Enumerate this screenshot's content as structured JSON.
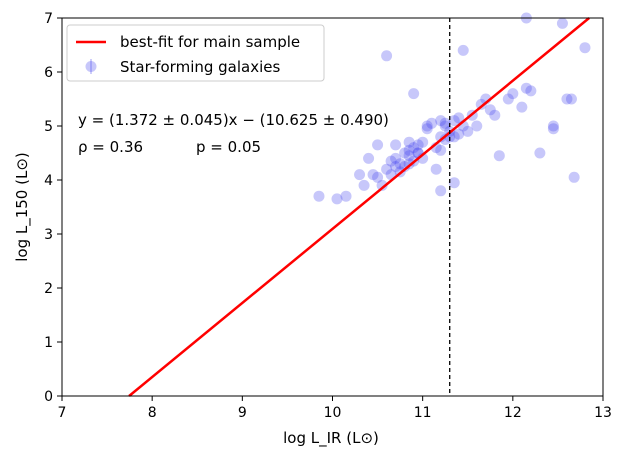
{
  "chart_data": {
    "type": "scatter",
    "title": "",
    "xlabel": "log L_IR (L⊙)",
    "ylabel": "log L_150 (L⊙)",
    "xlim": [
      7,
      13
    ],
    "ylim": [
      0,
      7
    ],
    "x_ticks": [
      "7",
      "8",
      "9",
      "10",
      "11",
      "12",
      "13"
    ],
    "y_ticks": [
      "0",
      "1",
      "2",
      "3",
      "4",
      "5",
      "6",
      "7"
    ],
    "grid": false,
    "legend": {
      "placement": "top-left",
      "entries": [
        "best-fit for main sample",
        "Star-forming galaxies"
      ]
    },
    "colors": {
      "fit_line": "#ff0000",
      "points": "#4444ee"
    },
    "fit": {
      "slope": 1.372,
      "intercept": -10.625
    },
    "vline_x": 11.3,
    "annotations": {
      "equation": "y = (1.372 ± 0.045)x − (10.625 ± 0.490)",
      "rho": "ρ = 0.36",
      "p": "p = 0.05"
    },
    "series": [
      {
        "name": "Star-forming galaxies",
        "x": [
          10.6,
          11.45,
          10.9,
          9.85,
          10.05,
          10.15,
          10.3,
          10.35,
          10.45,
          10.5,
          10.55,
          10.6,
          10.65,
          10.65,
          10.7,
          10.7,
          10.75,
          10.75,
          10.8,
          10.8,
          10.85,
          10.85,
          10.85,
          10.9,
          10.9,
          10.95,
          10.95,
          11.0,
          11.0,
          11.05,
          11.1,
          11.15,
          11.2,
          11.2,
          11.2,
          11.25,
          11.25,
          11.3,
          11.3,
          11.35,
          11.35,
          11.4,
          11.4,
          11.45,
          11.5,
          11.55,
          11.6,
          11.65,
          11.7,
          11.8,
          11.95,
          12.0,
          12.1,
          12.15,
          12.2,
          12.3,
          12.45,
          12.45,
          12.55,
          12.6,
          12.65,
          12.8,
          12.68,
          10.4,
          10.5,
          11.75,
          11.85,
          11.2,
          11.35,
          12.15,
          11.15,
          10.95,
          11.05,
          11.25,
          10.7,
          10.85
        ],
        "y": [
          6.3,
          6.4,
          5.6,
          3.7,
          3.65,
          3.7,
          4.1,
          3.9,
          4.1,
          4.05,
          3.9,
          4.2,
          4.1,
          4.35,
          4.4,
          4.25,
          4.3,
          4.15,
          4.5,
          4.25,
          4.55,
          4.3,
          4.7,
          4.6,
          4.35,
          4.65,
          4.5,
          4.4,
          4.7,
          5.0,
          5.05,
          4.2,
          5.1,
          4.8,
          4.55,
          4.75,
          5.0,
          4.8,
          4.9,
          5.1,
          4.8,
          5.15,
          4.85,
          5.0,
          4.9,
          5.2,
          5.0,
          5.4,
          5.5,
          5.2,
          5.5,
          5.6,
          5.35,
          5.7,
          5.65,
          4.5,
          5.0,
          4.95,
          6.9,
          5.5,
          5.5,
          6.45,
          4.05,
          4.4,
          4.65,
          5.3,
          4.45,
          3.8,
          3.95,
          7.0,
          4.6,
          4.5,
          4.95,
          5.05,
          4.65,
          4.45
        ]
      }
    ]
  }
}
